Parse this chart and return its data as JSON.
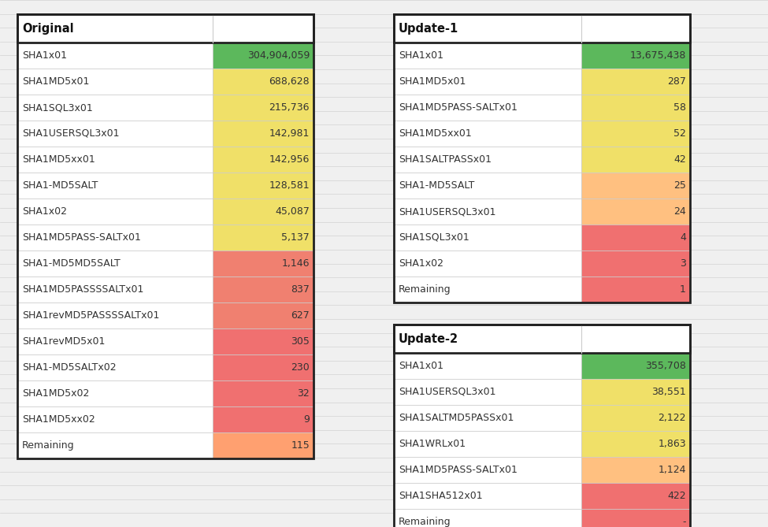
{
  "original": {
    "header": "Original",
    "rows": [
      {
        "label": "SHA1x01",
        "value": "304,904,059",
        "color": "#5cb85c"
      },
      {
        "label": "SHA1MD5x01",
        "value": "688,628",
        "color": "#f0e068"
      },
      {
        "label": "SHA1SQL3x01",
        "value": "215,736",
        "color": "#f0e068"
      },
      {
        "label": "SHA1USERSQL3x01",
        "value": "142,981",
        "color": "#f0e068"
      },
      {
        "label": "SHA1MD5xx01",
        "value": "142,956",
        "color": "#f0e068"
      },
      {
        "label": "SHA1-MD5SALT",
        "value": "128,581",
        "color": "#f0e068"
      },
      {
        "label": "SHA1x02",
        "value": "45,087",
        "color": "#f0e068"
      },
      {
        "label": "SHA1MD5PASS-SALTx01",
        "value": "5,137",
        "color": "#f0e068"
      },
      {
        "label": "SHA1-MD5MD5SALT",
        "value": "1,146",
        "color": "#f08070"
      },
      {
        "label": "SHA1MD5PASSSSALTx01",
        "value": "837",
        "color": "#f08070"
      },
      {
        "label": "SHA1revMD5PASSSSALTx01",
        "value": "627",
        "color": "#f08070"
      },
      {
        "label": "SHA1revMD5x01",
        "value": "305",
        "color": "#f07070"
      },
      {
        "label": "SHA1-MD5SALTx02",
        "value": "230",
        "color": "#f07070"
      },
      {
        "label": "SHA1MD5x02",
        "value": "32",
        "color": "#f07070"
      },
      {
        "label": "SHA1MD5xx02",
        "value": "9",
        "color": "#f07070"
      },
      {
        "label": "Remaining",
        "value": "115",
        "color": "#ffa070"
      }
    ]
  },
  "update1": {
    "header": "Update-1",
    "rows": [
      {
        "label": "SHA1x01",
        "value": "13,675,438",
        "color": "#5cb85c"
      },
      {
        "label": "SHA1MD5x01",
        "value": "287",
        "color": "#f0e068"
      },
      {
        "label": "SHA1MD5PASS-SALTx01",
        "value": "58",
        "color": "#f0e068"
      },
      {
        "label": "SHA1MD5xx01",
        "value": "52",
        "color": "#f0e068"
      },
      {
        "label": "SHA1SALTPASSx01",
        "value": "42",
        "color": "#f0e068"
      },
      {
        "label": "SHA1-MD5SALT",
        "value": "25",
        "color": "#ffc080"
      },
      {
        "label": "SHA1USERSQL3x01",
        "value": "24",
        "color": "#ffc080"
      },
      {
        "label": "SHA1SQL3x01",
        "value": "4",
        "color": "#f07070"
      },
      {
        "label": "SHA1x02",
        "value": "3",
        "color": "#f07070"
      },
      {
        "label": "Remaining",
        "value": "1",
        "color": "#f07070"
      }
    ]
  },
  "update2": {
    "header": "Update-2",
    "rows": [
      {
        "label": "SHA1x01",
        "value": "355,708",
        "color": "#5cb85c"
      },
      {
        "label": "SHA1USERSQL3x01",
        "value": "38,551",
        "color": "#f0e068"
      },
      {
        "label": "SHA1SALTMD5PASSx01",
        "value": "2,122",
        "color": "#f0e068"
      },
      {
        "label": "SHA1WRLx01",
        "value": "1,863",
        "color": "#f0e068"
      },
      {
        "label": "SHA1MD5PASS-SALTx01",
        "value": "1,124",
        "color": "#ffc080"
      },
      {
        "label": "SHA1SHA512x01",
        "value": "422",
        "color": "#f07070"
      },
      {
        "label": "Remaining",
        "value": "-",
        "color": "#f07070"
      }
    ]
  },
  "fig_width": 9.75,
  "fig_height": 6.69,
  "dpi": 100,
  "bg_color": "#f0f0f0",
  "font_size": 9.0,
  "header_font_size": 10.5
}
